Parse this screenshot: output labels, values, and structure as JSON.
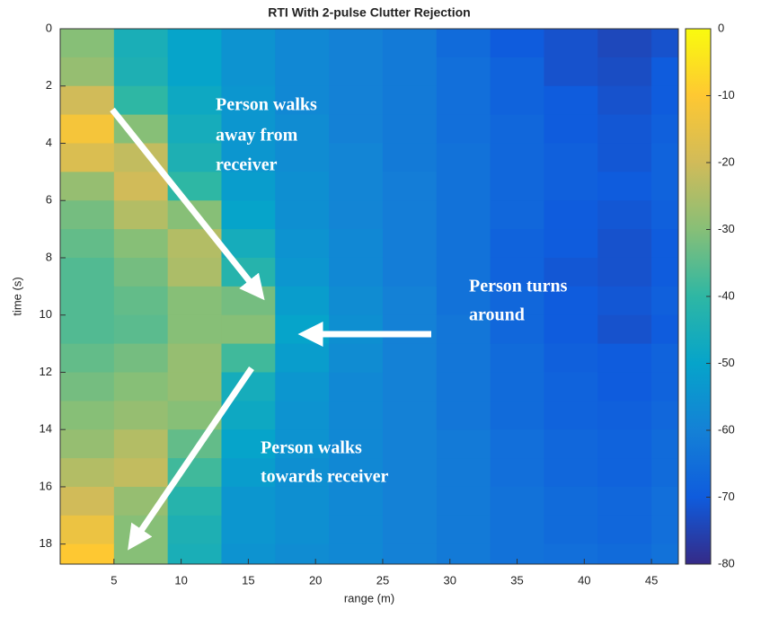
{
  "chart_data": {
    "type": "heatmap",
    "title": "RTI With 2-pulse Clutter Rejection",
    "x_label": "range (m)",
    "y_label": "time (s)",
    "xbins": [
      1,
      5,
      9,
      13,
      17,
      21,
      25,
      29,
      33,
      37,
      41,
      45,
      47
    ],
    "ybins": [
      0,
      1,
      2,
      3,
      4,
      5,
      6,
      7,
      8,
      9,
      10,
      11,
      12,
      13,
      14,
      15,
      16,
      17,
      18,
      18.7
    ],
    "values": [
      [
        -30,
        -45,
        -50,
        -55,
        -58,
        -60,
        -62,
        -66,
        -70,
        -72,
        -74,
        -72
      ],
      [
        -28,
        -44,
        -50,
        -55,
        -58,
        -60,
        -62,
        -65,
        -68,
        -72,
        -73,
        -70
      ],
      [
        -20,
        -40,
        -48,
        -54,
        -58,
        -60,
        -62,
        -65,
        -68,
        -70,
        -72,
        -70
      ],
      [
        -12,
        -30,
        -46,
        -54,
        -57,
        -60,
        -62,
        -65,
        -67,
        -70,
        -71,
        -69
      ],
      [
        -18,
        -22,
        -44,
        -54,
        -57,
        -59,
        -62,
        -64,
        -67,
        -69,
        -71,
        -68
      ],
      [
        -28,
        -20,
        -40,
        -52,
        -56,
        -59,
        -61,
        -64,
        -67,
        -69,
        -70,
        -68
      ],
      [
        -32,
        -24,
        -30,
        -50,
        -56,
        -59,
        -61,
        -64,
        -67,
        -70,
        -71,
        -69
      ],
      [
        -34,
        -30,
        -24,
        -46,
        -55,
        -58,
        -61,
        -64,
        -68,
        -70,
        -72,
        -70
      ],
      [
        -36,
        -32,
        -25,
        -42,
        -54,
        -58,
        -61,
        -64,
        -68,
        -71,
        -72,
        -70
      ],
      [
        -36,
        -34,
        -30,
        -32,
        -52,
        -57,
        -60,
        -64,
        -67,
        -70,
        -71,
        -69
      ],
      [
        -36,
        -35,
        -30,
        -30,
        -50,
        -56,
        -60,
        -63,
        -67,
        -70,
        -72,
        -70
      ],
      [
        -34,
        -32,
        -28,
        -38,
        -52,
        -57,
        -60,
        -63,
        -66,
        -69,
        -70,
        -68
      ],
      [
        -32,
        -30,
        -28,
        -46,
        -54,
        -58,
        -60,
        -63,
        -66,
        -68,
        -70,
        -68
      ],
      [
        -30,
        -28,
        -30,
        -48,
        -55,
        -58,
        -60,
        -63,
        -66,
        -68,
        -69,
        -67
      ],
      [
        -28,
        -24,
        -34,
        -50,
        -55,
        -58,
        -60,
        -62,
        -65,
        -67,
        -68,
        -66
      ],
      [
        -24,
        -22,
        -38,
        -52,
        -56,
        -58,
        -60,
        -62,
        -65,
        -67,
        -68,
        -66
      ],
      [
        -20,
        -28,
        -42,
        -54,
        -56,
        -58,
        -60,
        -62,
        -64,
        -66,
        -67,
        -65
      ],
      [
        -14,
        -30,
        -44,
        -54,
        -56,
        -58,
        -60,
        -62,
        -64,
        -66,
        -67,
        -65
      ],
      [
        -10,
        -30,
        -45,
        -55,
        -57,
        -58,
        -60,
        -62,
        -64,
        -65,
        -66,
        -64
      ]
    ],
    "xlim": [
      1,
      47
    ],
    "ylim": [
      18.7,
      0
    ],
    "xticks": [
      5,
      10,
      15,
      20,
      25,
      30,
      35,
      40,
      45
    ],
    "yticks": [
      0,
      2,
      4,
      6,
      8,
      10,
      12,
      14,
      16,
      18
    ],
    "clim": [
      -80,
      0
    ],
    "cticks": [
      0,
      -10,
      -20,
      -30,
      -40,
      -50,
      -60,
      -70,
      -80
    ],
    "colormap": [
      "#352a87",
      "#0f5cdd",
      "#1481d6",
      "#06a4ca",
      "#2eb7a4",
      "#87bf77",
      "#d1bb59",
      "#fec832",
      "#f9fb0e"
    ],
    "annotations": [
      {
        "lines": [
          "Person walks",
          "away from",
          "receiver"
        ]
      },
      {
        "lines": [
          "Person turns",
          "around"
        ]
      },
      {
        "lines": [
          "Person walks",
          "towards receiver"
        ]
      }
    ]
  }
}
